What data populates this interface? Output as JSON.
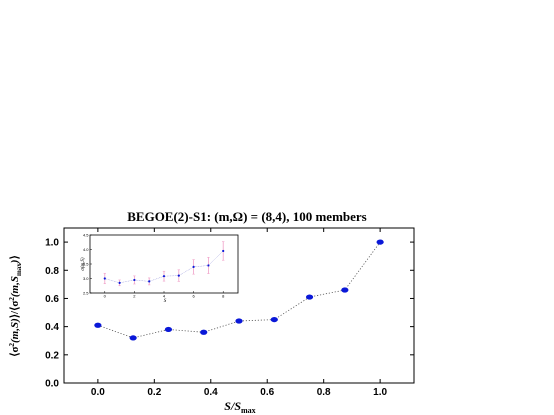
{
  "chart_data": [
    {
      "type": "scatter",
      "title": "BEGOE(2)-S1: (m,Ω) = (8,4), 100 members",
      "xlabel": "S/S_max",
      "ylabel": "⟨σ²(m,S)⟩/⟨σ²(m,S_max)⟩",
      "xlim": [
        -0.12,
        1.12
      ],
      "ylim": [
        0.0,
        1.1
      ],
      "x": [
        0.0,
        0.125,
        0.25,
        0.375,
        0.5,
        0.625,
        0.75,
        0.875,
        1.0
      ],
      "y": [
        0.41,
        0.32,
        0.38,
        0.36,
        0.44,
        0.45,
        0.61,
        0.66,
        1.0
      ],
      "xticks": [
        "0.0",
        "0.2",
        "0.4",
        "0.6",
        "0.8",
        "1.0"
      ],
      "yticks": [
        "0.0",
        "0.2",
        "0.4",
        "0.6",
        "0.8",
        "1.0"
      ],
      "marker_color": "#0a18d8",
      "line_style": "dotted"
    },
    {
      "type": "scatter",
      "role": "inset",
      "xlabel": "S",
      "ylabel": "σ(m,S)",
      "xlim": [
        -1,
        9
      ],
      "ylim": [
        2.5,
        4.5
      ],
      "x": [
        0,
        1,
        2,
        3,
        4,
        5,
        6,
        7,
        8
      ],
      "y": [
        3.0,
        2.85,
        2.95,
        2.9,
        3.08,
        3.1,
        3.4,
        3.45,
        3.95
      ],
      "yerr": [
        0.18,
        0.1,
        0.14,
        0.12,
        0.17,
        0.2,
        0.25,
        0.28,
        0.32
      ],
      "xticks": [
        "0",
        "2",
        "4",
        "6",
        "8"
      ],
      "yticks": [
        "2.5",
        "3.0",
        "3.5",
        "4.0",
        "4.5"
      ],
      "marker_color": "#0a18d8",
      "error_color": "#f0a0c8"
    }
  ]
}
